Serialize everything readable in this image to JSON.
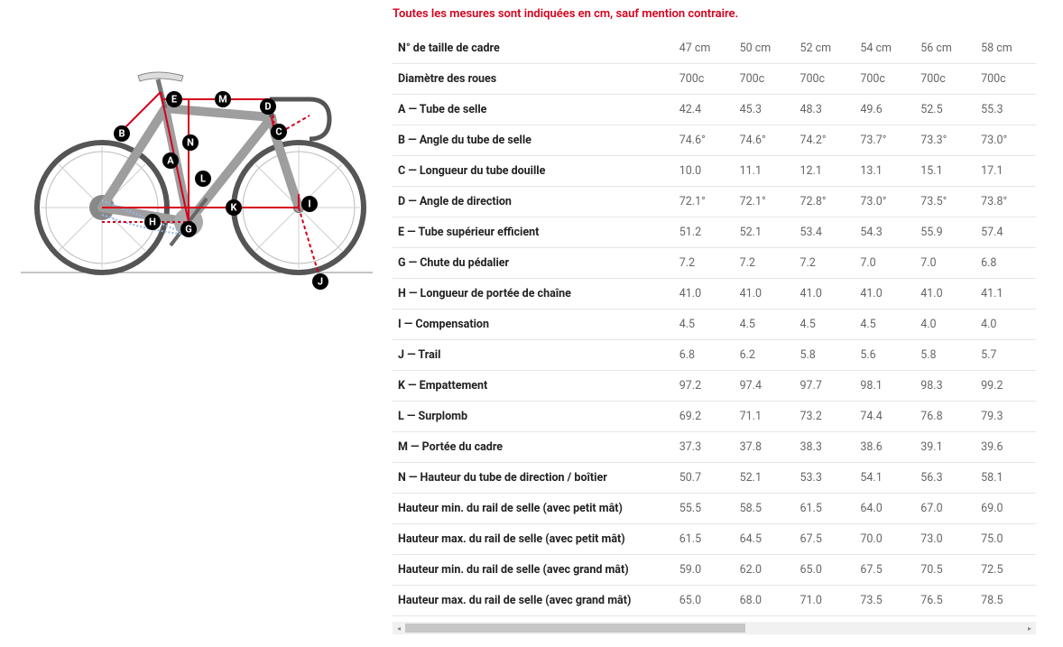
{
  "notice": "Toutes les mesures sont indiquées en cm, sauf mention contraire.",
  "notice_color": "#d5001c",
  "diagram": {
    "line_color": "#d5001c",
    "frame_color": "#9e9e9e",
    "wheel_color": "#555555",
    "spoke_color": "#bcbcbc",
    "labels": [
      "A",
      "B",
      "C",
      "D",
      "E",
      "G",
      "H",
      "I",
      "J",
      "K",
      "L",
      "M",
      "N"
    ]
  },
  "table": {
    "columns": [
      "47 cm",
      "50 cm",
      "52 cm",
      "54 cm",
      "56 cm",
      "58 cm"
    ],
    "label_header": "N° de taille de cadre",
    "rows": [
      {
        "label": "Diamètre des roues",
        "v": [
          "700c",
          "700c",
          "700c",
          "700c",
          "700c",
          "700c"
        ]
      },
      {
        "label": "A — Tube de selle",
        "v": [
          "42.4",
          "45.3",
          "48.3",
          "49.6",
          "52.5",
          "55.3"
        ]
      },
      {
        "label": "B — Angle du tube de selle",
        "v": [
          "74.6°",
          "74.6°",
          "74.2°",
          "73.7°",
          "73.3°",
          "73.0°"
        ]
      },
      {
        "label": "C — Longueur du tube douille",
        "v": [
          "10.0",
          "11.1",
          "12.1",
          "13.1",
          "15.1",
          "17.1"
        ]
      },
      {
        "label": "D — Angle de direction",
        "v": [
          "72.1°",
          "72.1°",
          "72.8°",
          "73.0°",
          "73.5°",
          "73.8°"
        ]
      },
      {
        "label": "E — Tube supérieur efficient",
        "v": [
          "51.2",
          "52.1",
          "53.4",
          "54.3",
          "55.9",
          "57.4"
        ]
      },
      {
        "label": "G — Chute du pédalier",
        "v": [
          "7.2",
          "7.2",
          "7.2",
          "7.0",
          "7.0",
          "6.8"
        ]
      },
      {
        "label": "H — Longueur de portée de chaîne",
        "v": [
          "41.0",
          "41.0",
          "41.0",
          "41.0",
          "41.0",
          "41.1"
        ]
      },
      {
        "label": "I — Compensation",
        "v": [
          "4.5",
          "4.5",
          "4.5",
          "4.5",
          "4.0",
          "4.0"
        ]
      },
      {
        "label": "J — Trail",
        "v": [
          "6.8",
          "6.2",
          "5.8",
          "5.6",
          "5.8",
          "5.7"
        ]
      },
      {
        "label": "K — Empattement",
        "v": [
          "97.2",
          "97.4",
          "97.7",
          "98.1",
          "98.3",
          "99.2"
        ]
      },
      {
        "label": "L — Surplomb",
        "v": [
          "69.2",
          "71.1",
          "73.2",
          "74.4",
          "76.8",
          "79.3"
        ]
      },
      {
        "label": "M — Portée du cadre",
        "v": [
          "37.3",
          "37.8",
          "38.3",
          "38.6",
          "39.1",
          "39.6"
        ]
      },
      {
        "label": "N — Hauteur du tube de direction / boîtier",
        "v": [
          "50.7",
          "52.1",
          "53.3",
          "54.1",
          "56.3",
          "58.1"
        ]
      },
      {
        "label": "Hauteur min. du rail de selle (avec petit mât)",
        "v": [
          "55.5",
          "58.5",
          "61.5",
          "64.0",
          "67.0",
          "69.0"
        ]
      },
      {
        "label": "Hauteur max. du rail de selle (avec petit mât)",
        "v": [
          "61.5",
          "64.5",
          "67.5",
          "70.0",
          "73.0",
          "75.0"
        ]
      },
      {
        "label": "Hauteur min. du rail de selle (avec grand mât)",
        "v": [
          "59.0",
          "62.0",
          "65.0",
          "67.5",
          "70.5",
          "72.5"
        ]
      },
      {
        "label": "Hauteur max. du rail de selle (avec grand mât)",
        "v": [
          "65.0",
          "68.0",
          "71.0",
          "73.5",
          "76.5",
          "78.5"
        ]
      }
    ]
  }
}
